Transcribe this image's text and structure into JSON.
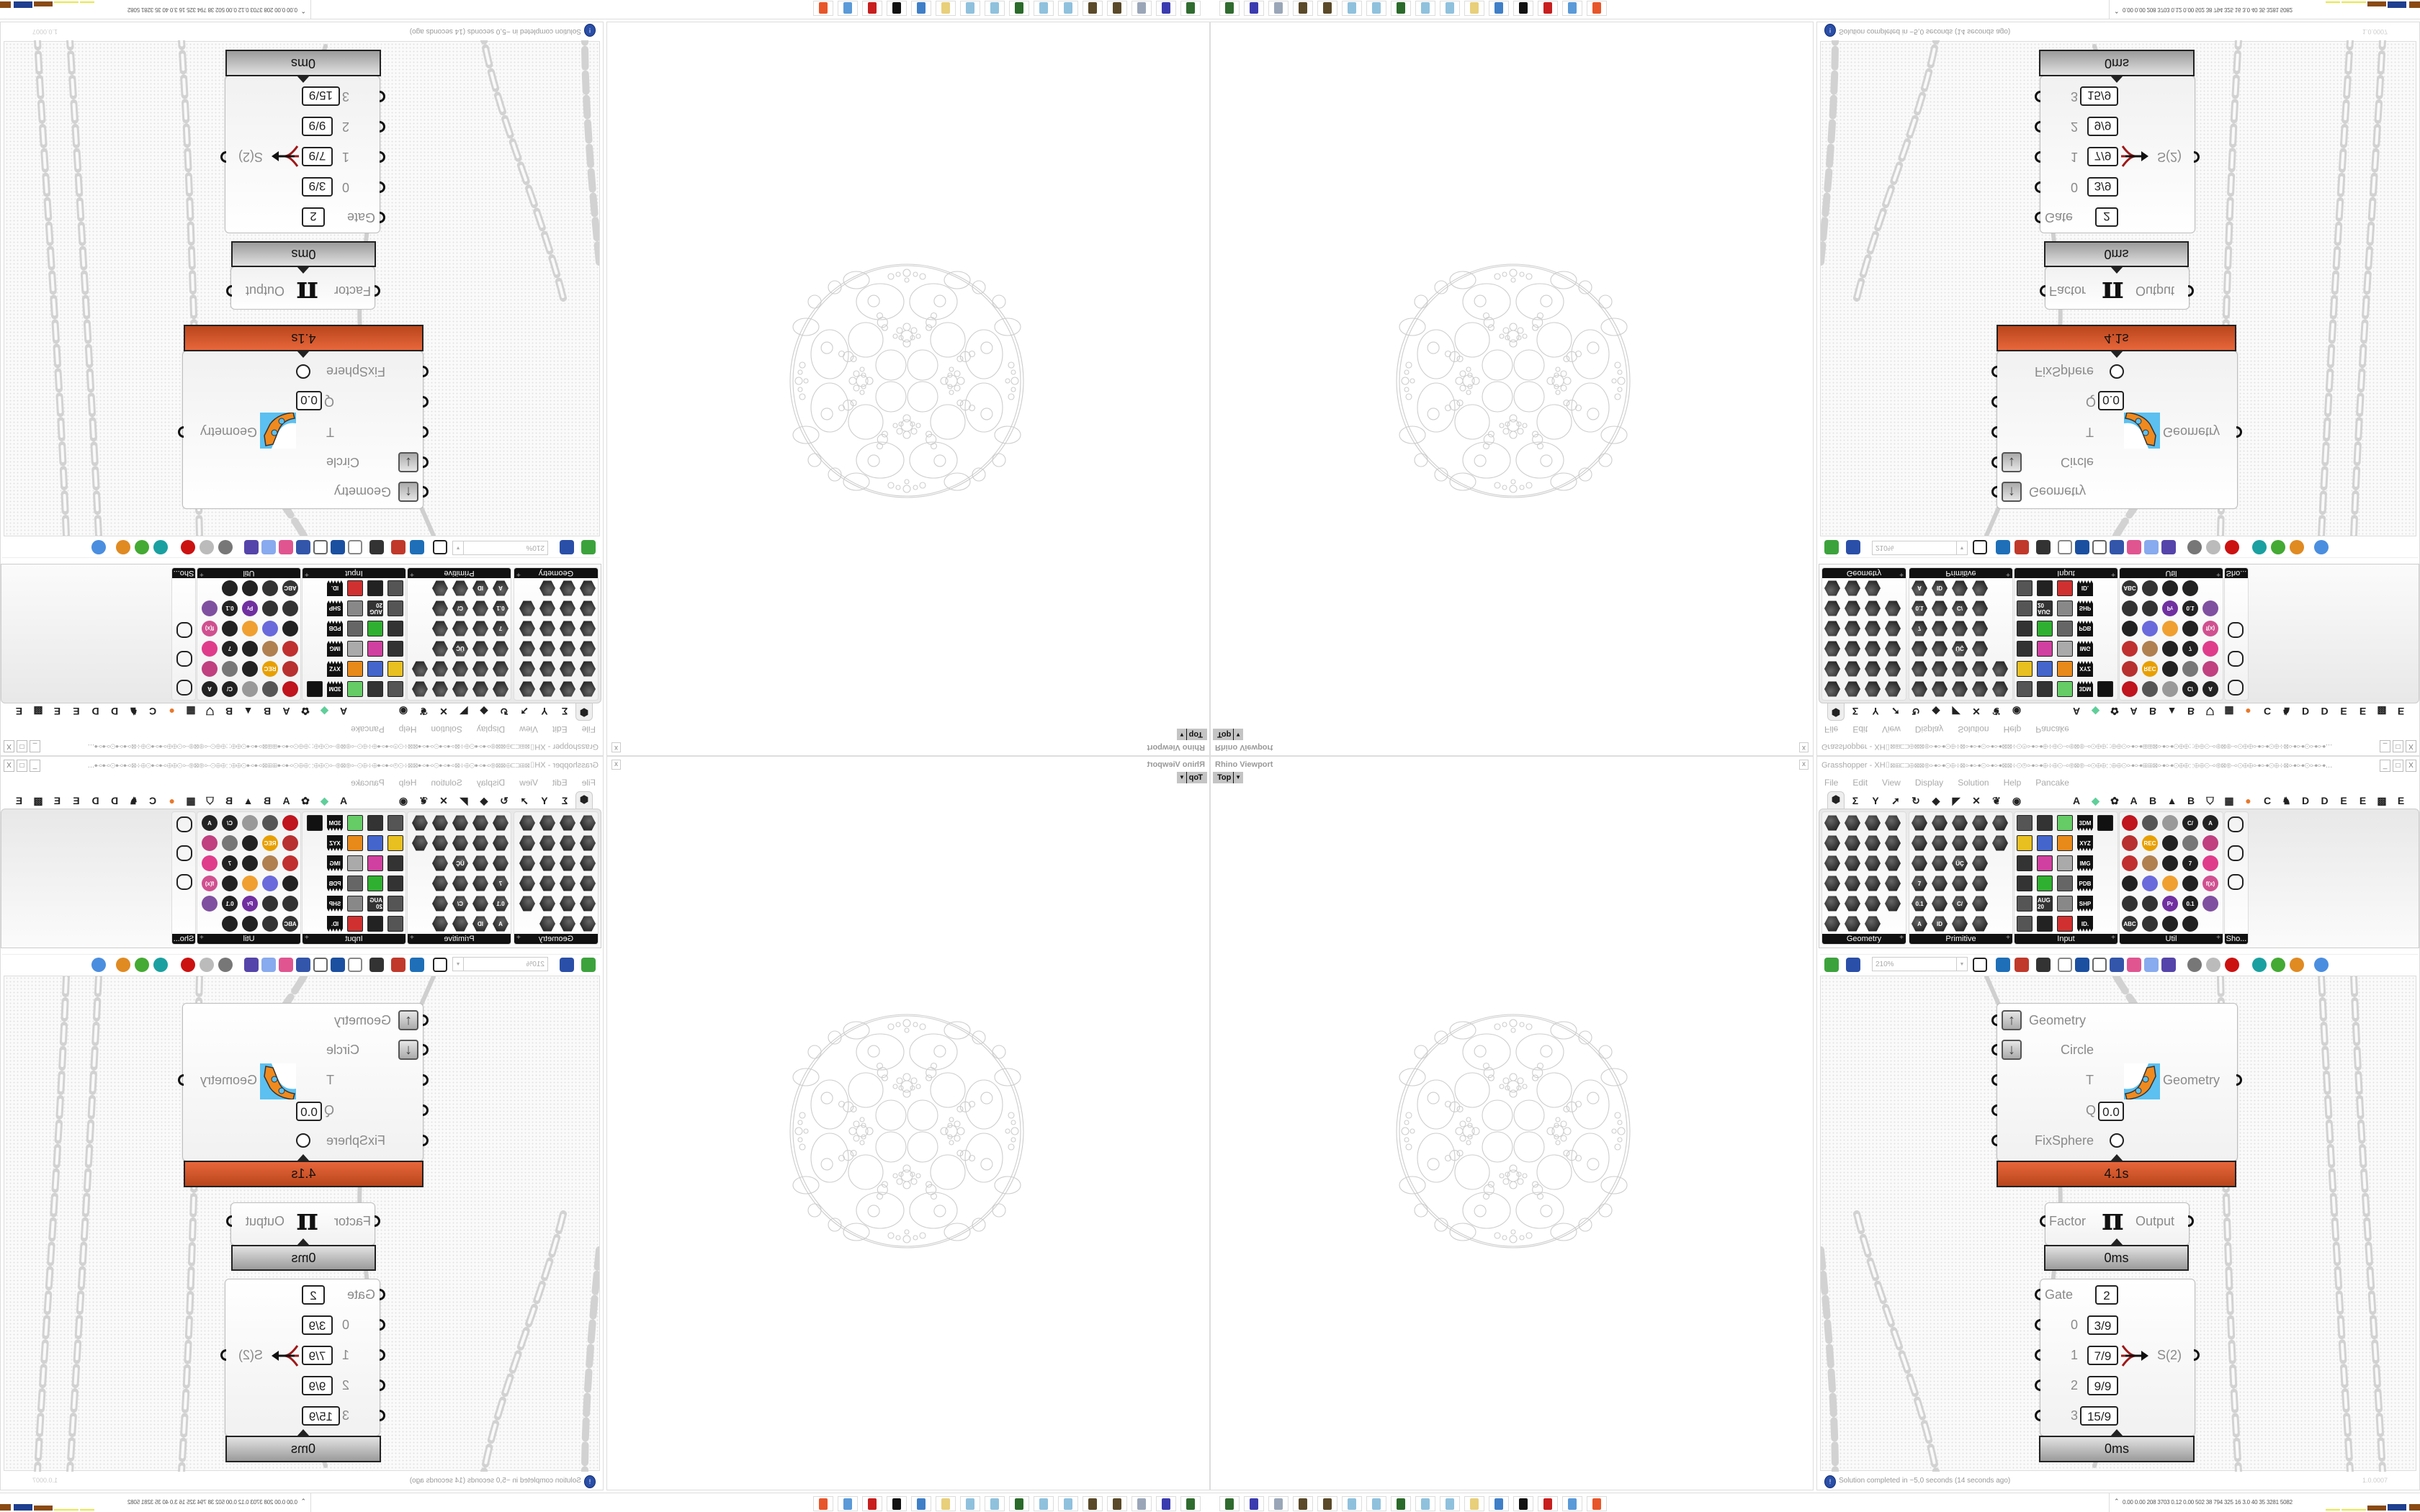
{
  "rhino": {
    "title": "Rhino Viewport",
    "view_tab": "Top",
    "close": "x"
  },
  "grasshopper": {
    "title": "Grasshopper - XH⌷⊠⊞⊏⊐⊕⊠⊠⊛⊶⊶⊙⊕⊹⊠⊶⊶⊙⊶⊶⊠⊠⊹⊙⊚⊶⊶⊕⊹⊕⊙⊸⊛⊠⊛⊸⊙⊕⊕∷⊕⊕⊙⊶⊶⊞⊞⊠⊶⊶⊙⊕⊕∷⊕⊕⊙⊸⊛⊠⊛⊸⊙⊕⊕⊶⊶⊙⊕⊹⊠⊶⊶⊙⊶⊶...",
    "window_buttons": [
      "_",
      "□",
      "X"
    ],
    "menu": [
      "File",
      "Edit",
      "View",
      "Display",
      "Solution",
      "Help",
      "Pancake"
    ],
    "tabs": [
      {
        "icon": "params-hexagon-icon",
        "glyph": "⬢"
      },
      {
        "icon": "maths-sigma-icon",
        "glyph": "Σ"
      },
      {
        "icon": "sets-icon",
        "glyph": "Y"
      },
      {
        "icon": "vector-icon",
        "glyph": "➚"
      },
      {
        "icon": "curve-icon",
        "glyph": "↻"
      },
      {
        "icon": "surface-icon",
        "glyph": "◆"
      },
      {
        "icon": "mesh-icon",
        "glyph": "◤"
      },
      {
        "icon": "intersect-icon",
        "glyph": "✕"
      },
      {
        "icon": "transform-icon",
        "glyph": "❦"
      },
      {
        "icon": "display-eye-icon",
        "glyph": "◉"
      },
      {
        "icon": "plugin-a-icon",
        "glyph": "A"
      },
      {
        "icon": "gem-icon",
        "glyph": "◆",
        "color": "#5fcf9a"
      },
      {
        "icon": "puzzle-icon",
        "glyph": "✿"
      },
      {
        "icon": "plugin-a2-icon",
        "glyph": "A"
      },
      {
        "icon": "plugin-b-icon",
        "glyph": "B"
      },
      {
        "icon": "mountain-icon",
        "glyph": "▲"
      },
      {
        "icon": "plugin-b2-icon",
        "glyph": "B"
      },
      {
        "icon": "shield-icon",
        "glyph": "⛉"
      },
      {
        "icon": "grid-icon",
        "glyph": "▦"
      },
      {
        "icon": "orange-circle-icon",
        "glyph": "●",
        "color": "#e8782a"
      },
      {
        "icon": "plugin-c-icon",
        "glyph": "C"
      },
      {
        "icon": "rooster-icon",
        "glyph": "♞"
      },
      {
        "icon": "plugin-d-icon",
        "glyph": "D"
      },
      {
        "icon": "plugin-d2-icon",
        "glyph": "D"
      },
      {
        "icon": "plugin-e-icon",
        "glyph": "E"
      },
      {
        "icon": "plugin-e2-icon",
        "glyph": "E"
      },
      {
        "icon": "dotted-grid-icon",
        "glyph": "▩"
      },
      {
        "icon": "plugin-e3-icon",
        "glyph": "E"
      }
    ],
    "panels": [
      {
        "label": "Geometry",
        "cols": 4,
        "kind": "hex",
        "items": [
          "box",
          "line",
          "point",
          "spiral",
          "cross",
          "plane",
          "brep",
          "field",
          "vector",
          "rectangle",
          "text",
          "transform",
          "circle",
          "cube",
          "cage",
          "atom",
          "arc",
          "surface",
          "mesh-ref",
          "group",
          "twisted-box",
          "geodesic",
          "magnet"
        ]
      },
      {
        "label": "Primitive",
        "cols": 5,
        "kind": "hex",
        "items": [
          "colour",
          "spark",
          "matrix",
          "domain",
          "boolean",
          "shape",
          "stripes",
          "time",
          "image",
          "path",
          "tree-scissors",
          "text-uc",
          "pattern",
          "file",
          "",
          "integer",
          "number-line",
          "tree",
          "curve-domain",
          "",
          "number",
          "grid",
          "complex",
          "file-path",
          "",
          "text-A",
          "id",
          "sphere",
          "arc-dom"
        ],
        "glyphs": {
          "3": "",
          "12": "ÜÇ",
          "15": "7",
          "20": "0.1",
          "22": "C/",
          "25": "A",
          "26": "ID"
        }
      },
      {
        "label": "Input",
        "cols": 5,
        "kind": "input",
        "items": [
          "import",
          "panel",
          "colour-swatch",
          "import-3dm",
          "goo",
          "graph-mapper",
          "gradient-pick",
          "bezier",
          "import-xyz",
          "",
          "toggle",
          "colour-slider",
          "colour-wheel",
          "import-image",
          "",
          "button",
          "checker",
          "function",
          "import-pdb",
          "",
          "value-list",
          "calendar",
          "control-knob",
          "import-shp",
          "",
          "list",
          "clock",
          "spectrum",
          "id-tag",
          ""
        ],
        "glyphs": {
          "3": "3DM",
          "8": "XYZ",
          "13": "IMG",
          "18": "PDB",
          "21": "AUG 20",
          "23": "SHP",
          "28": "ID."
        }
      },
      {
        "label": "Util",
        "cols": 5,
        "kind": "util",
        "items": [
          "cherry",
          "magnet",
          "arrow-outline",
          "c-sharp",
          "a-text",
          "play-triangle",
          "record",
          "search-arrow",
          "galapagos",
          "eyeball",
          "axis",
          "pencil",
          "timer",
          "seven",
          "flask",
          "tree-dark",
          "data-recorder",
          "egg",
          "key",
          "fx",
          "ring",
          "swirl",
          "premiere",
          "zero-one",
          "palette",
          "abc",
          "arrow-right",
          "dial",
          "x-hex",
          ""
        ],
        "glyphs": {
          "3": "C/",
          "4": "A",
          "6": "REC",
          "13": "7",
          "19": "f(x)",
          "22": "Pr",
          "23": "0.1",
          "25": "ABC"
        }
      },
      {
        "label": "Sho...",
        "cols": 1,
        "kind": "show",
        "items": [
          "goggles",
          "goggles-2",
          "presentation"
        ]
      }
    ],
    "toolbar": {
      "zoom": "210%",
      "icons": [
        {
          "name": "new-document-icon",
          "color": "#3ca33c"
        },
        {
          "name": "save-icon",
          "color": "#2a4fa8"
        },
        {
          "name": "zoom-extents-icon",
          "color": "#222222"
        },
        {
          "name": "preview-eye-icon",
          "color": "#1e6fb8"
        },
        {
          "name": "sketch-icon",
          "color": "#c0392b"
        },
        {
          "name": "cluster-icon",
          "color": "#333333"
        },
        {
          "name": "at-sign-icon",
          "color": "#888888"
        },
        {
          "name": "gha-library-icon",
          "color": "#1b4fa0"
        },
        {
          "name": "window-icon",
          "color": "#666666"
        },
        {
          "name": "search-icon",
          "color": "#3355aa"
        },
        {
          "name": "package-icon",
          "color": "#e05590"
        },
        {
          "name": "bulb-icon",
          "color": "#88aaee"
        },
        {
          "name": "dna-icon",
          "color": "#5544aa"
        },
        {
          "name": "preview-shaded-icon",
          "color": "#777777"
        },
        {
          "name": "preview-wire-icon",
          "color": "#bbbbbb"
        },
        {
          "name": "preview-selected-icon",
          "color": "#cc1111"
        },
        {
          "name": "teal-surface-icon",
          "color": "#1aa0a0"
        },
        {
          "name": "green-surface-icon",
          "color": "#44aa33"
        },
        {
          "name": "half-sphere-icon",
          "color": "#e08a22"
        },
        {
          "name": "blue-sphere-icon",
          "color": "#4a8ee0"
        }
      ]
    },
    "kiss_component": {
      "inputs": [
        "Geometry",
        "Circle",
        "T",
        "Q",
        "FixSphere"
      ],
      "q_value": "0.0",
      "output": "Geometry",
      "time": "4.1s"
    },
    "pi_component": {
      "input": "Factor",
      "symbol": "π",
      "output": "Output",
      "time": "0ms"
    },
    "gate_component": {
      "gate_label": "Gate",
      "gate_value": "2",
      "rows": [
        {
          "index": "0",
          "value": "3/9"
        },
        {
          "index": "1",
          "value": "7/9"
        },
        {
          "index": "2",
          "value": "9/9"
        },
        {
          "index": "3",
          "value": "15/9"
        }
      ],
      "output": "S(2)",
      "time": "0ms"
    },
    "status": {
      "message": "Solution completed in ~5,0 seconds (14 seconds ago)",
      "version": "1.0.0007"
    }
  },
  "taskbar": {
    "icons": [
      {
        "name": "task-manager-icon",
        "color": "#2f6b2f"
      },
      {
        "name": "floppy-64-icon",
        "color": "#3b3bb0"
      },
      {
        "name": "notepad-scroll-icon",
        "color": "#9aa6b8"
      },
      {
        "name": "gear-app-icon",
        "color": "#5a4a2a"
      },
      {
        "name": "gear-app-2-icon",
        "color": "#5a4a2a"
      },
      {
        "name": "notepad-icon",
        "color": "#8fc1dd"
      },
      {
        "name": "notepad-2-icon",
        "color": "#8fc1dd"
      },
      {
        "name": "monitor-chart-icon",
        "color": "#2a6a2a"
      },
      {
        "name": "notepad-3-icon",
        "color": "#8fc1dd"
      },
      {
        "name": "notepad-4-icon",
        "color": "#8fc1dd"
      },
      {
        "name": "folder-icon",
        "color": "#e8cf7a"
      },
      {
        "name": "control-panel-icon",
        "color": "#3f7fc8"
      },
      {
        "name": "inkscape-icon",
        "color": "#111111"
      },
      {
        "name": "red-app-icon",
        "color": "#c81e1e"
      },
      {
        "name": "calculator-icon",
        "color": "#5a9ad8"
      },
      {
        "name": "firefox-icon",
        "color": "#e8552a"
      }
    ],
    "tray": {
      "chevron": "⌃",
      "stats": "0.00  0.00  208  3703 0.12  0.00  502   38   794   325   16   3.0   40   35  3281 5082",
      "meter_colors": [
        "#e8e84a",
        "#e8e84a",
        "#e8e84a",
        "#8a4a14",
        "#1f3f8f",
        "#8a4a14",
        "#44cc44",
        "#cc2222"
      ]
    }
  },
  "colors": {
    "accent_orange": "#d9582a",
    "grasshopper_blue": "#2a4fa8",
    "wire_grey": "#cfcfcf"
  }
}
